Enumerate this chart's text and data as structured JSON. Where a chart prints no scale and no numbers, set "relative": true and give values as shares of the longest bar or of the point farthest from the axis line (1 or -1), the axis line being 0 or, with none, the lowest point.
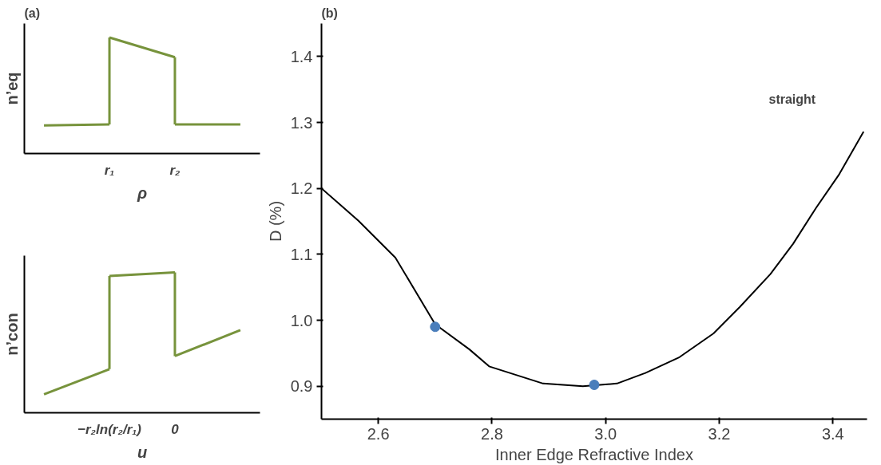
{
  "chart_data": [
    {
      "type": "line",
      "title": "(a)",
      "relative": true,
      "xlabel": "ρ",
      "ylabel": "n’eq",
      "categories": [
        null,
        "r₁",
        "r₂",
        null
      ],
      "tick_labels": "x",
      "grid": false,
      "series": [
        {
          "color": "#77933c",
          "values": [
            0.243,
            0.25,
            null,
            null
          ]
        },
        {
          "color": "#77933c",
          "values": [
            null,
            1,
            0.83,
            null
          ]
        },
        {
          "color": "#77933c",
          "values": [
            null,
            null,
            0.25,
            0.25
          ]
        }
      ]
    },
    {
      "type": "line",
      "relative": true,
      "xlabel": "u",
      "ylabel": "n’con",
      "categories": [
        null,
        "−r₂ln(r₂/r₁)",
        "0",
        null
      ],
      "tick_labels": "x",
      "grid": false,
      "series": [
        {
          "color": "#77933c",
          "values": [
            0.132,
            0.311,
            null,
            null
          ]
        },
        {
          "color": "#77933c",
          "values": [
            null,
            0.975,
            1,
            null
          ]
        },
        {
          "color": "#77933c",
          "values": [
            null,
            null,
            0.404,
            0.589
          ]
        }
      ]
    },
    {
      "type": "line",
      "title": "(b)",
      "xlabel": "Inner Edge Refractive Index",
      "ylabel": "D (%)",
      "xlim": [
        2.5,
        3.46
      ],
      "ylim": [
        0.85,
        1.45
      ],
      "xticks": [
        2.6,
        2.8,
        {
          "value": 3.0,
          "label": "3.0"
        },
        3.2,
        3.4
      ],
      "yticks": [
        0.9,
        {
          "value": 1.0,
          "label": "1.0"
        },
        1.1,
        1.2,
        1.3,
        1.4
      ],
      "grid": false,
      "annotations": [
        "straight"
      ],
      "series": [
        {
          "type": "line",
          "color": "#000000",
          "x": [
            2.5,
            2.565,
            2.63,
            2.7,
            2.76,
            2.795,
            2.89,
            2.96,
            3.02,
            3.07,
            3.13,
            3.19,
            3.236,
            3.29,
            3.33,
            3.37,
            3.41,
            3.454
          ],
          "values": [
            1.2,
            1.151,
            1.095,
            0.994,
            0.956,
            0.93,
            0.904,
            0.9,
            0.904,
            0.92,
            0.944,
            0.98,
            1.02,
            1.07,
            1.116,
            1.17,
            1.22,
            1.286
          ]
        },
        {
          "type": "scatter",
          "color": "#4a7ebb",
          "marker": "circle",
          "x": [
            2.7,
            2.98
          ],
          "values": [
            0.99,
            0.902
          ]
        }
      ]
    }
  ]
}
